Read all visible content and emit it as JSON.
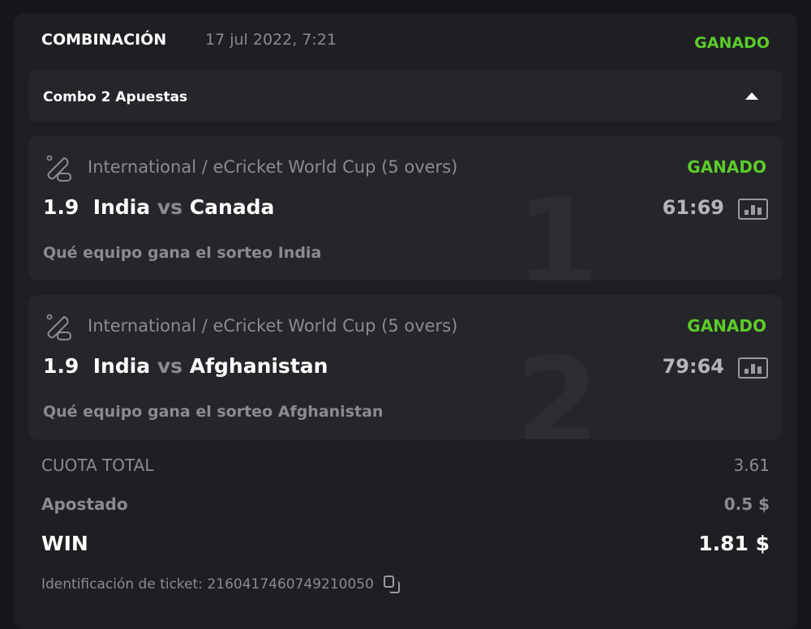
{
  "header": {
    "title": "COMBINACIÓN",
    "date": "17 jul 2022, 7:21",
    "status": "GANADO"
  },
  "combo": {
    "label": "Combo 2 Apuestas"
  },
  "bets": [
    {
      "index": "1",
      "league": "International / eCricket World Cup (5 overs)",
      "status": "GANADO",
      "odds": "1.9",
      "home": "India",
      "vs": "vs",
      "away": "Canada",
      "score": "61:69",
      "pick": "Qué equipo gana el sorteo India"
    },
    {
      "index": "2",
      "league": "International / eCricket World Cup (5 overs)",
      "status": "GANADO",
      "odds": "1.9",
      "home": "India",
      "vs": "vs",
      "away": "Afghanistan",
      "score": "79:64",
      "pick": "Qué equipo gana el sorteo Afghanistan"
    }
  ],
  "summary": {
    "total_odds_label": "CUOTA TOTAL",
    "total_odds": "3.61",
    "staked_label": "Apostado",
    "staked": "0.5 $",
    "win_label": "WIN",
    "win": "1.81 $"
  },
  "ticket": {
    "label": "Identificación de ticket: 2160417460749210050"
  },
  "colors": {
    "win_green": "#5bcc2a"
  }
}
